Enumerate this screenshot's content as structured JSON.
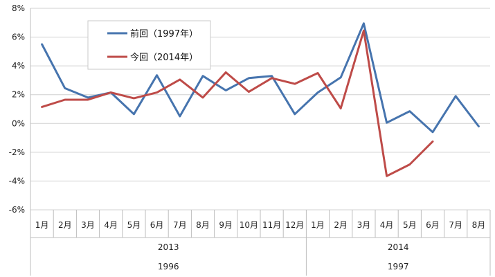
{
  "chart_data": {
    "type": "line",
    "ylim": [
      -6,
      8
    ],
    "yticks": [
      -6,
      -4,
      -2,
      0,
      2,
      4,
      6,
      8
    ],
    "ytick_format": "{v}%",
    "grid": true,
    "legend_position": "top-left",
    "categories": [
      "1月",
      "2月",
      "3月",
      "4月",
      "5月",
      "6月",
      "7月",
      "8月",
      "9月",
      "10月",
      "11月",
      "12月",
      "1月",
      "2月",
      "3月",
      "4月",
      "5月",
      "6月",
      "7月",
      "8月"
    ],
    "year_groups_top": [
      {
        "label": "2013",
        "start": 0,
        "end": 12
      },
      {
        "label": "2014",
        "start": 12,
        "end": 20
      }
    ],
    "year_groups_bottom": [
      {
        "label": "1996",
        "start": 0,
        "end": 12
      },
      {
        "label": "1997",
        "start": 12,
        "end": 20
      }
    ],
    "series": [
      {
        "name": "前回（1997年）",
        "color": "#4674AE",
        "values": [
          5.5,
          2.45,
          1.8,
          2.15,
          0.65,
          3.35,
          0.5,
          3.3,
          2.3,
          3.15,
          3.3,
          0.65,
          2.15,
          3.2,
          6.95,
          0.05,
          0.85,
          -0.6,
          1.9,
          -0.2
        ]
      },
      {
        "name": "今回（2014年）",
        "color": "#BE4B48",
        "values": [
          1.15,
          1.65,
          1.65,
          2.15,
          1.75,
          2.15,
          3.05,
          1.8,
          3.55,
          2.2,
          3.15,
          2.75,
          3.5,
          1.05,
          6.45,
          -3.65,
          -2.85,
          -1.25,
          null,
          null
        ]
      }
    ]
  }
}
